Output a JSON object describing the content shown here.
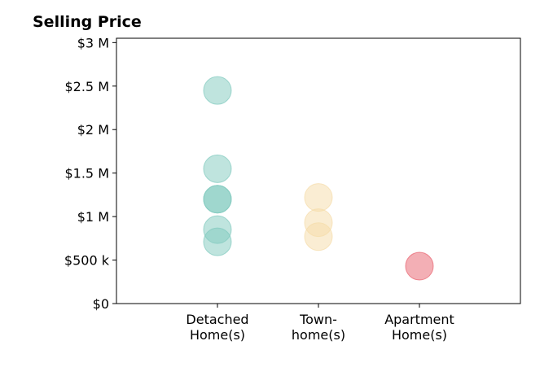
{
  "chart_data": {
    "type": "scatter",
    "title": "Selling Price",
    "xlabel": "",
    "ylabel": "",
    "categories": [
      [
        "Detached",
        "Home(s)"
      ],
      [
        "Town-",
        "home(s)"
      ],
      [
        "Apartment",
        "Home(s)"
      ]
    ],
    "y_ticks": [
      {
        "value": 0,
        "label": "$0"
      },
      {
        "value": 500000,
        "label": "$500 k"
      },
      {
        "value": 1000000,
        "label": "$1 M"
      },
      {
        "value": 1500000,
        "label": "$1.5 M"
      },
      {
        "value": 2000000,
        "label": "$2 M"
      },
      {
        "value": 2500000,
        "label": "$2.5 M"
      },
      {
        "value": 3000000,
        "label": "$3 M"
      }
    ],
    "ylim": [
      0,
      3050000
    ],
    "grid": false,
    "series": [
      {
        "category": 0,
        "color": "#7fc9bd",
        "values": [
          2450000,
          1550000,
          1200000,
          1200000,
          850000,
          710000
        ]
      },
      {
        "category": 1,
        "color": "#f5dca8",
        "values": [
          1220000,
          930000,
          770000
        ]
      },
      {
        "category": 2,
        "color": "#e8606c",
        "values": [
          430000
        ]
      }
    ]
  }
}
